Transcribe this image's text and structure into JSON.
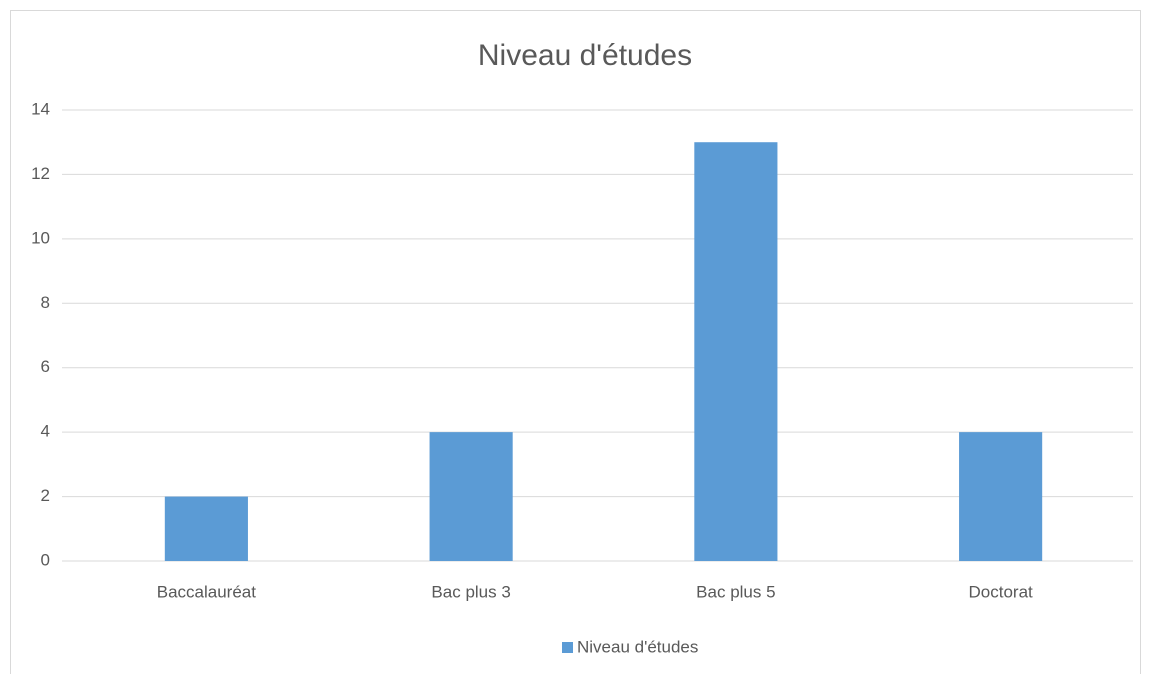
{
  "chart_data": {
    "type": "bar",
    "title": "Niveau d'études",
    "categories": [
      "Baccalauréat",
      "Bac plus 3",
      "Bac plus 5",
      "Doctorat"
    ],
    "series": [
      {
        "name": "Niveau d'études",
        "color": "#5b9bd5",
        "values": [
          2,
          4,
          13,
          4
        ]
      }
    ],
    "ylim": [
      0,
      14
    ],
    "yticks": [
      0,
      2,
      4,
      6,
      8,
      10,
      12,
      14
    ],
    "grid": true,
    "legend": "bottom"
  }
}
